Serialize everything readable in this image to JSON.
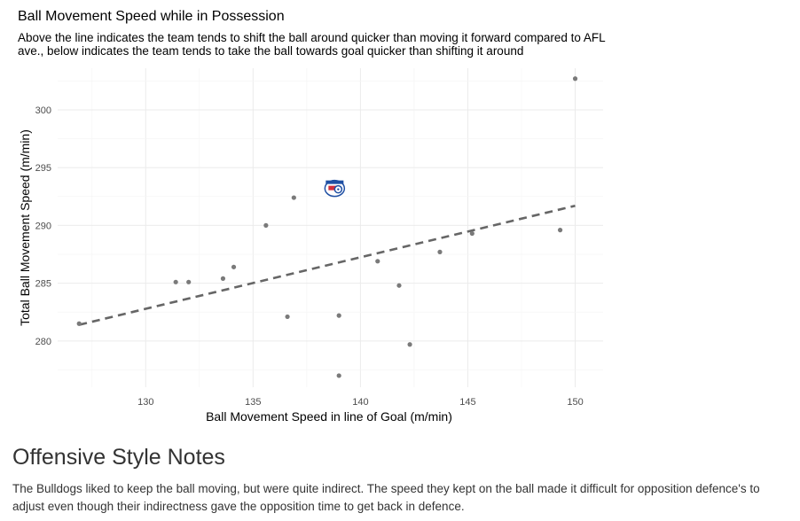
{
  "chart_data": {
    "type": "scatter",
    "title": "Ball Movement Speed while in Possession",
    "subtitle": "Above the line indicates the team tends to shift the ball around quicker than moving it forward compared to AFL ave., below indicates the team tends to take the ball towards goal quicker than shifting it around",
    "xlabel": "Ball Movement Speed in line of Goal (m/min)",
    "ylabel": "Total Ball Movement Speed (m/min)",
    "xlim": [
      125.9,
      151.3
    ],
    "ylim": [
      276.0,
      303.6
    ],
    "x_ticks": [
      130,
      135,
      140,
      145,
      150
    ],
    "y_ticks": [
      280,
      285,
      290,
      295,
      300
    ],
    "grid": true,
    "points": [
      {
        "x": 126.9,
        "y": 281.5
      },
      {
        "x": 131.4,
        "y": 285.1
      },
      {
        "x": 132.0,
        "y": 285.1
      },
      {
        "x": 133.6,
        "y": 285.4
      },
      {
        "x": 134.1,
        "y": 286.4
      },
      {
        "x": 135.6,
        "y": 290.0
      },
      {
        "x": 136.6,
        "y": 282.1
      },
      {
        "x": 136.9,
        "y": 292.4
      },
      {
        "x": 139.0,
        "y": 282.2
      },
      {
        "x": 139.0,
        "y": 277.0
      },
      {
        "x": 140.8,
        "y": 286.9
      },
      {
        "x": 141.8,
        "y": 284.8
      },
      {
        "x": 142.3,
        "y": 279.7
      },
      {
        "x": 143.7,
        "y": 287.7
      },
      {
        "x": 145.2,
        "y": 289.3
      },
      {
        "x": 149.3,
        "y": 289.6
      },
      {
        "x": 150.0,
        "y": 302.7
      }
    ],
    "highlight": {
      "x": 138.8,
      "y": 293.2,
      "icon": "bulldogs-logo"
    },
    "trend_line": {
      "x": [
        126.9,
        150.0
      ],
      "y": [
        281.4,
        291.7
      ],
      "style": "dashed",
      "color": "#666666"
    },
    "point_color": "#7a7a7a"
  },
  "notes": {
    "heading": "Offensive Style Notes",
    "text": "The Bulldogs liked to keep the ball moving, but were quite indirect. The speed they kept on the ball made it difficult for opposition defence's to adjust even though their indirectness gave the opposition time to get back in defence."
  }
}
